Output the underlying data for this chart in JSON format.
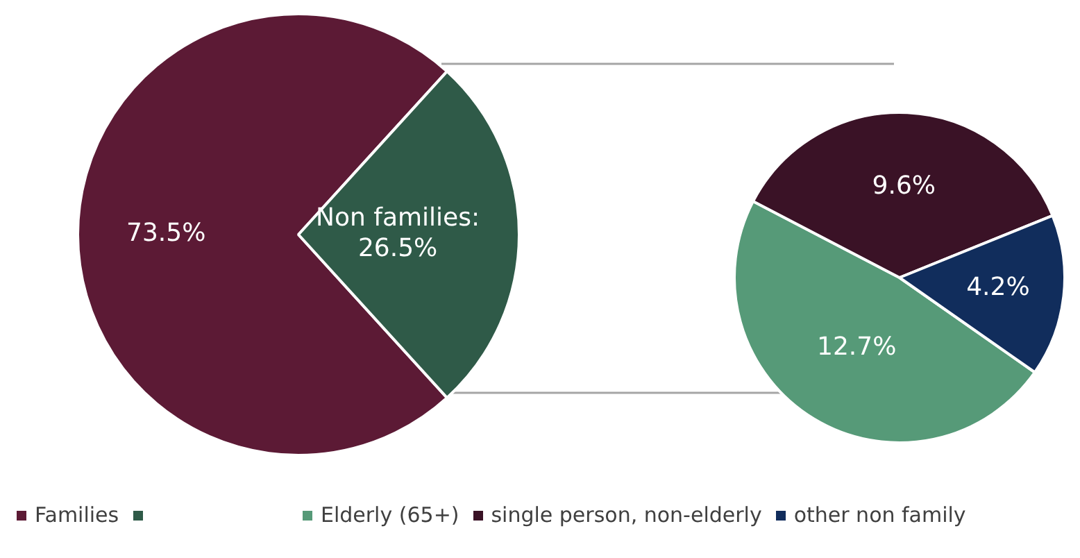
{
  "chart_data": [
    {
      "type": "pie",
      "categories": [
        "Families",
        null
      ],
      "values": [
        73.5,
        26.5
      ],
      "colors": [
        "#5c1a35",
        "#2f5a48"
      ],
      "value_labels": [
        "73.5%",
        "Non families:\n26.5%"
      ],
      "legend": "bottom"
    },
    {
      "type": "pie",
      "categories": [
        "Elderly (65+)",
        "single person, non-elderly",
        "other non family"
      ],
      "values": [
        12.7,
        9.6,
        4.2
      ],
      "colors": [
        "#569a78",
        "#3a1226",
        "#112d5c"
      ],
      "value_labels": [
        "12.7%",
        "9.6%",
        "4.2%"
      ],
      "legend": "bottom"
    }
  ]
}
